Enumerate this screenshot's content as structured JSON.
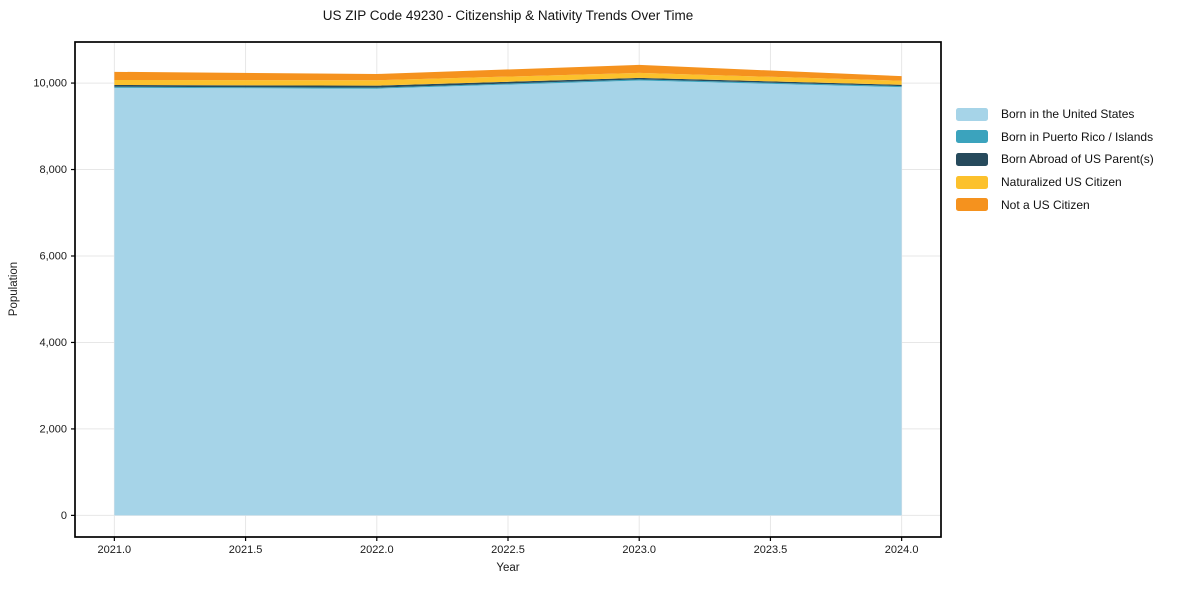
{
  "chart_data": {
    "type": "area",
    "stacked": true,
    "title": "US ZIP Code 49230 - Citizenship & Nativity Trends Over Time",
    "xlabel": "Year",
    "ylabel": "Population",
    "x": [
      2021,
      2022,
      2023,
      2024
    ],
    "series": [
      {
        "name": "Born in the United States",
        "color": "#a6d4e8",
        "values": [
          9890,
          9870,
          10060,
          9905
        ]
      },
      {
        "name": "Born in Puerto Rico / Islands",
        "color": "#3ba3bd",
        "values": [
          25,
          25,
          25,
          25
        ]
      },
      {
        "name": "Born Abroad of US Parent(s)",
        "color": "#264a5c",
        "values": [
          40,
          45,
          35,
          30
        ]
      },
      {
        "name": "Naturalized US Citizen",
        "color": "#fcc12c",
        "values": [
          115,
          125,
          115,
          95
        ]
      },
      {
        "name": "Not a US Citizen",
        "color": "#f5921e",
        "values": [
          190,
          145,
          185,
          105
        ]
      }
    ],
    "xticks": [
      2021.0,
      2021.5,
      2022.0,
      2022.5,
      2023.0,
      2023.5,
      2024.0
    ],
    "xtick_labels": [
      "2021.0",
      "2021.5",
      "2022.0",
      "2022.5",
      "2023.0",
      "2023.5",
      "2024.0"
    ],
    "yticks": [
      0,
      2000,
      4000,
      6000,
      8000,
      10000
    ],
    "ytick_labels": [
      "0",
      "2,000",
      "4,000",
      "6,000",
      "8,000",
      "10,000"
    ],
    "xlim": [
      2020.85,
      2024.15
    ],
    "ylim": [
      -500,
      10950
    ],
    "grid": true,
    "legend_position": "right-outside",
    "colors": {
      "background": "#ffffff",
      "grid": "#e7e7e7",
      "spine": "#000000",
      "text": "#1a1a1a"
    }
  }
}
